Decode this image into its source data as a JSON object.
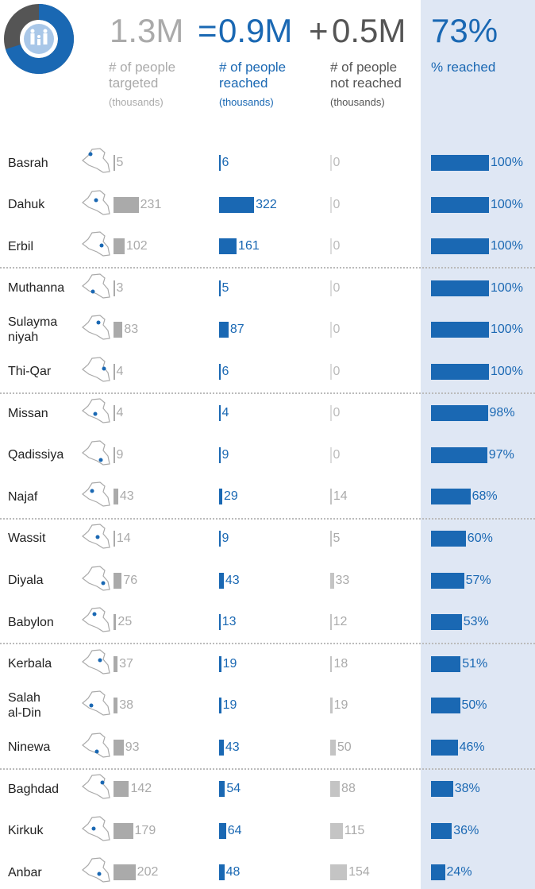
{
  "chart_data": {
    "type": "bar",
    "headline": {
      "targeted": "1.3M",
      "equals": "=",
      "reached": "0.9M",
      "plus": "+",
      "not_reached": "0.5M",
      "percent": "73%"
    },
    "categories": [
      "Basrah",
      "Dahuk",
      "Erbil",
      "Muthanna",
      "Sulayma\nniyah",
      "Thi-Qar",
      "Missan",
      "Qadissiya",
      "Najaf",
      "Wassit",
      "Diyala",
      "Babylon",
      "Kerbala",
      "Salah\nal-Din",
      "Ninewa",
      "Baghdad",
      "Kirkuk",
      "Anbar"
    ],
    "series": [
      {
        "name": "# of people\ntargeted",
        "unit": "(thousands)",
        "color": "#aaaaaa",
        "values": [
          5,
          231,
          102,
          3,
          83,
          4,
          4,
          9,
          43,
          14,
          76,
          25,
          37,
          38,
          93,
          142,
          179,
          202
        ]
      },
      {
        "name": "# of people\nreached",
        "unit": "(thousands)",
        "color": "#1a68b3",
        "values": [
          6,
          322,
          161,
          5,
          87,
          6,
          4,
          9,
          29,
          9,
          43,
          13,
          19,
          19,
          43,
          54,
          64,
          48
        ]
      },
      {
        "name": "# of people\nnot reached",
        "unit": "(thousands)",
        "color": "#c4c4c4",
        "values": [
          0,
          0,
          0,
          0,
          0,
          0,
          0,
          0,
          14,
          5,
          33,
          12,
          18,
          19,
          50,
          88,
          115,
          154
        ]
      },
      {
        "name": "% reached",
        "color": "#1a68b3",
        "values": [
          100,
          100,
          100,
          100,
          100,
          100,
          98,
          97,
          68,
          60,
          57,
          53,
          51,
          50,
          46,
          38,
          36,
          24
        ],
        "value_labels": [
          "100%",
          "100%",
          "100%",
          "100%",
          "100%",
          "100%",
          "98%",
          "97%",
          "68%",
          "60%",
          "57%",
          "53%",
          "51%",
          "50%",
          "46%",
          "38%",
          "36%",
          "24%"
        ]
      }
    ]
  }
}
